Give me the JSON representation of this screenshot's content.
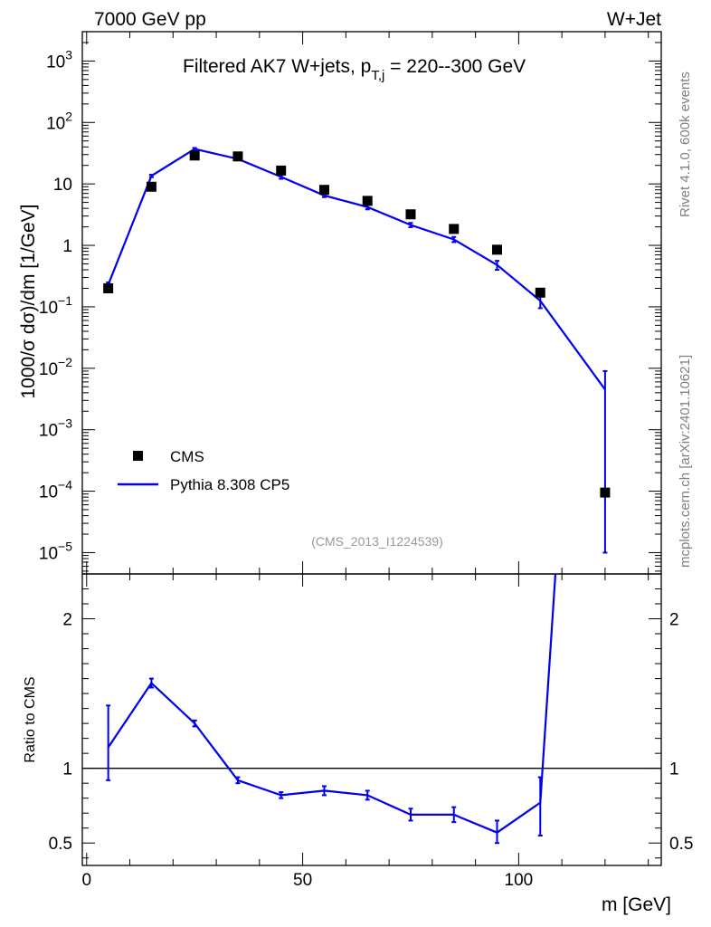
{
  "header": {
    "left": "7000 GeV pp",
    "right": "W+Jet"
  },
  "side_labels": {
    "rivet": "Rivet 4.1.0,  600k events",
    "mcplots": "mcplots.cern.ch [arXiv:2401.10621]"
  },
  "colors": {
    "mc": "#0000ee",
    "data": "#000000",
    "reference_line": "#000000"
  },
  "chart_data": [
    {
      "type": "scatter",
      "panel": "main",
      "title_prefix": "Filtered AK7 W+jets, p",
      "title_sub": "T,j",
      "title_suffix": " = 220--300 GeV",
      "ylabel": "1000/σ   dσ)/dm [1/GeV]",
      "analysis_label": "(CMS_2013_I1224539)",
      "yscale": "log",
      "xlim": [
        -1,
        133
      ],
      "ylim": [
        4.5e-06,
        3000
      ],
      "grid": false,
      "legend_position": "upper-left",
      "ytick_labels": [
        {
          "value": 1000,
          "base": "10",
          "exp": "3"
        },
        {
          "value": 100,
          "base": "10",
          "exp": "2"
        },
        {
          "value": 10,
          "base": "10",
          "exp": ""
        },
        {
          "value": 1,
          "base": "1",
          "exp": ""
        },
        {
          "value": 0.1,
          "base": "10",
          "exp": "−1"
        },
        {
          "value": 0.01,
          "base": "10",
          "exp": "−2"
        },
        {
          "value": 0.001,
          "base": "10",
          "exp": "−3"
        },
        {
          "value": 0.0001,
          "base": "10",
          "exp": "−4"
        },
        {
          "value": 1e-05,
          "base": "10",
          "exp": "−5"
        }
      ],
      "series": [
        {
          "name": "CMS",
          "style": "markers",
          "x": [
            5,
            15,
            25,
            35,
            45,
            55,
            65,
            75,
            85,
            95,
            105,
            120
          ],
          "y": [
            0.2,
            9,
            29,
            28,
            16.5,
            8,
            5.3,
            3.2,
            1.85,
            0.85,
            0.17,
            9.5e-05
          ]
        },
        {
          "name": "Pythia 8.308 CP5",
          "style": "line",
          "x": [
            5,
            15,
            25,
            35,
            45,
            55,
            65,
            75,
            85,
            95,
            105,
            120
          ],
          "y": [
            0.23,
            13.5,
            37,
            25.5,
            13,
            6.5,
            4.2,
            2.15,
            1.25,
            0.48,
            0.125,
            0.0045
          ],
          "yerr_low": [
            0.02,
            0.6,
            1.5,
            1.0,
            0.9,
            0.4,
            0.35,
            0.17,
            0.12,
            0.08,
            0.03,
            0.00449
          ],
          "yerr_high": [
            0.02,
            0.6,
            1.5,
            1.0,
            0.9,
            0.4,
            0.35,
            0.17,
            0.12,
            0.08,
            0.03,
            0.0045
          ]
        }
      ]
    },
    {
      "type": "line",
      "panel": "ratio",
      "ylabel": "Ratio to CMS",
      "xlabel": "m [GeV]",
      "xlim": [
        -1,
        133
      ],
      "ylim": [
        0.35,
        2.3
      ],
      "xticks": [
        0,
        50,
        100
      ],
      "yticks": [
        0.5,
        1,
        2
      ],
      "reference": 1,
      "series": [
        {
          "name": "Pythia 8.308 CP5",
          "x": [
            5,
            15,
            25,
            35,
            45,
            55,
            65,
            75,
            85,
            95,
            105,
            108.5
          ],
          "y": [
            1.14,
            1.57,
            1.3,
            0.92,
            0.82,
            0.85,
            0.82,
            0.69,
            0.69,
            0.57,
            0.77,
            2.3
          ],
          "yerr_low": [
            0.22,
            0.03,
            0.02,
            0.02,
            0.02,
            0.03,
            0.03,
            0.04,
            0.05,
            0.07,
            0.22,
            0
          ],
          "yerr_high": [
            0.28,
            0.03,
            0.02,
            0.02,
            0.02,
            0.03,
            0.03,
            0.04,
            0.05,
            0.08,
            0.17,
            0
          ]
        }
      ]
    }
  ]
}
